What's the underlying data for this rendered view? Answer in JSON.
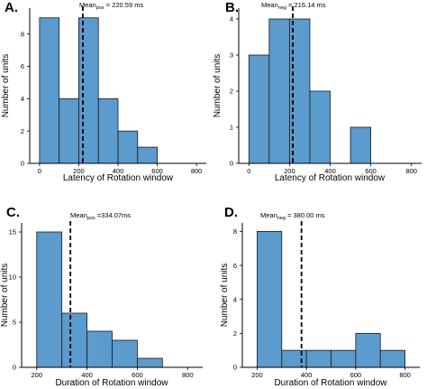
{
  "chart_data": [
    {
      "panel_label": "A.",
      "type": "bar",
      "bins": [
        [
          0,
          100
        ],
        [
          100,
          200
        ],
        [
          200,
          300
        ],
        [
          300,
          400
        ],
        [
          400,
          500
        ],
        [
          500,
          600
        ]
      ],
      "values": [
        9,
        4,
        9,
        4,
        2,
        1
      ],
      "mean": 220.59,
      "mean_prefix": "Mean",
      "mean_subscript": "pos",
      "mean_suffix": " = 220.59 ms",
      "xlabel": "Latency of Rotation window",
      "ylabel": "Number of units",
      "xlim": [
        -50,
        850
      ],
      "ylim": [
        0,
        9.6
      ],
      "xticks": [
        0,
        200,
        400,
        600,
        800
      ],
      "yticks": [
        0,
        2,
        4,
        6,
        8
      ],
      "legend": "none",
      "grid": false
    },
    {
      "panel_label": "B.",
      "type": "bar",
      "bins": [
        [
          0,
          100
        ],
        [
          100,
          200
        ],
        [
          200,
          300
        ],
        [
          300,
          400
        ],
        [
          500,
          600
        ]
      ],
      "values": [
        3,
        4,
        4,
        2,
        1
      ],
      "mean": 216.14,
      "mean_prefix": "Mean",
      "mean_subscript": "neg",
      "mean_suffix": " = 216.14 ms",
      "xlabel": "Latency of Rotation window",
      "ylabel": "Number of units",
      "xlim": [
        -50,
        850
      ],
      "ylim": [
        0,
        4.3
      ],
      "xticks": [
        0,
        200,
        400,
        600,
        800
      ],
      "yticks": [
        0,
        1,
        2,
        3,
        4
      ],
      "legend": "none",
      "grid": false
    },
    {
      "panel_label": "C.",
      "type": "bar",
      "bins": [
        [
          200,
          300
        ],
        [
          300,
          400
        ],
        [
          400,
          500
        ],
        [
          500,
          600
        ],
        [
          600,
          700
        ]
      ],
      "values": [
        15,
        6,
        4,
        3,
        1
      ],
      "mean": 334.07,
      "mean_prefix": "Mean",
      "mean_subscript": "pos",
      "mean_suffix": " =334.07ms",
      "xlabel": "Duration of Rotation window",
      "ylabel": "Number of units",
      "xlim": [
        140,
        860
      ],
      "ylim": [
        0,
        16
      ],
      "xticks": [
        200,
        400,
        600,
        800
      ],
      "yticks": [
        0,
        5,
        10,
        15
      ],
      "legend": "none",
      "grid": false
    },
    {
      "panel_label": "D.",
      "type": "bar",
      "bins": [
        [
          200,
          300
        ],
        [
          300,
          400
        ],
        [
          400,
          500
        ],
        [
          500,
          600
        ],
        [
          600,
          700
        ],
        [
          700,
          800
        ]
      ],
      "values": [
        8,
        1,
        1,
        1,
        2,
        1
      ],
      "mean": 380.0,
      "mean_prefix": "Mean",
      "mean_subscript": "neg",
      "mean_suffix": " = 380.00 ms",
      "xlabel": "Duration of Rotation window",
      "ylabel": "Number of units",
      "xlim": [
        140,
        860
      ],
      "ylim": [
        0,
        8.5
      ],
      "xticks": [
        200,
        400,
        600,
        800
      ],
      "yticks": [
        0,
        2,
        4,
        6,
        8
      ],
      "legend": "none",
      "grid": false
    }
  ],
  "colors": {
    "bar_fill": "#5b9bcd",
    "bar_edge": "#1a1a1a",
    "axis": "#000000",
    "mean_line": "#000000"
  }
}
